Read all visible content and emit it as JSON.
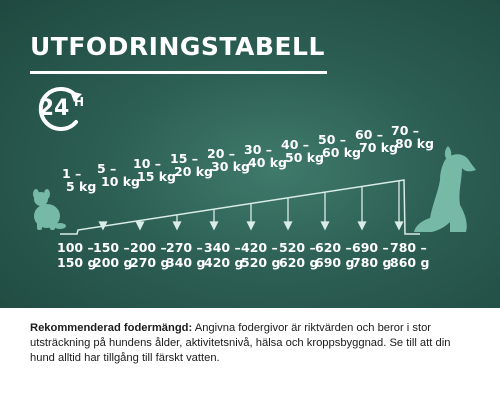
{
  "title": "UTFODRINGSTABELL",
  "badge": {
    "number": "24",
    "suffix": "H",
    "icon": "refresh-clock-icon"
  },
  "colors": {
    "background": "#2c5e53",
    "foreground": "#ffffff",
    "text": "#1b1b1b"
  },
  "table": {
    "weights": [
      {
        "line1": "1 –",
        "line2": "5 kg"
      },
      {
        "line1": "5 –",
        "line2": "10 kg"
      },
      {
        "line1": "10 –",
        "line2": "15 kg"
      },
      {
        "line1": "15 –",
        "line2": "20 kg"
      },
      {
        "line1": "20 –",
        "line2": "30 kg"
      },
      {
        "line1": "30 –",
        "line2": "40 kg"
      },
      {
        "line1": "40 –",
        "line2": "50 kg"
      },
      {
        "line1": "50 –",
        "line2": "60 kg"
      },
      {
        "line1": "60 –",
        "line2": "70 kg"
      },
      {
        "line1": "70 –",
        "line2": "80 kg"
      }
    ],
    "grams": [
      {
        "line1": "100 –",
        "line2": "150 g"
      },
      {
        "line1": "150 –",
        "line2": "200 g"
      },
      {
        "line1": "200 –",
        "line2": "270 g"
      },
      {
        "line1": "270 –",
        "line2": "340 g"
      },
      {
        "line1": "340 –",
        "line2": "420 g"
      },
      {
        "line1": "420 –",
        "line2": "520 g"
      },
      {
        "line1": "520 –",
        "line2": "620 g"
      },
      {
        "line1": "620 –",
        "line2": "690 g"
      },
      {
        "line1": "690 –",
        "line2": "780 g"
      },
      {
        "line1": "780 –",
        "line2": "860 g"
      }
    ],
    "icons": {
      "small_dog": "small-dog-icon",
      "large_dog": "large-dog-icon"
    }
  },
  "note": {
    "label": "Rekommenderad fodermängd:",
    "text": " Angivna fodergivor är riktvärden och beror i stor utsträckning på hundens ålder, aktivitetsnivå, hälsa och kroppsbyggnad. Se till att din hund alltid har tillgång till färskt vatten."
  }
}
